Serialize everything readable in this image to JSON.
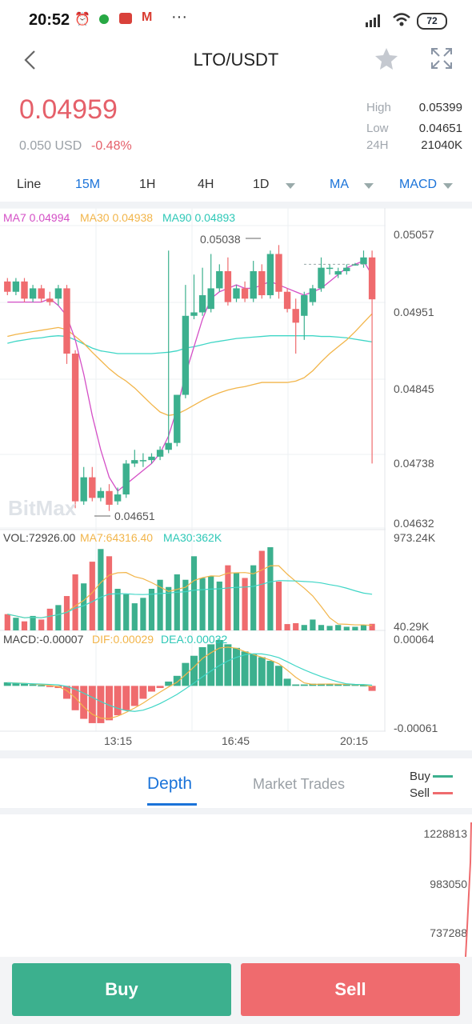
{
  "status_bar": {
    "time": "20:52",
    "battery": "72",
    "icons": [
      "alarm-icon",
      "whatsapp-business-icon",
      "mail-app-icon",
      "gmail-icon",
      "more-dots-icon",
      "signal-icon",
      "wifi-icon",
      "battery-icon"
    ]
  },
  "header": {
    "title": "LTO/USDT",
    "back_icon": "chevron-left-icon",
    "favorite_icon": "star-icon",
    "fullscreen_icon": "expand-icon"
  },
  "price": {
    "last": "0.04959",
    "usd": "0.050 USD",
    "change": "-0.48%",
    "stats": [
      {
        "label": "High",
        "value": "0.05399"
      },
      {
        "label": "Low",
        "value": "0.04651"
      },
      {
        "label": "24H",
        "value": "21040K"
      }
    ]
  },
  "toolbar": {
    "items": [
      "Line",
      "15M",
      "1H",
      "4H",
      "1D",
      "MA",
      "MACD"
    ],
    "active": "15M"
  },
  "chart_legend": {
    "ma7": "MA7 0.04994",
    "ma30": "MA30 0.04938",
    "ma90": "MA90 0.04893",
    "vol": "VOL:72926.00",
    "vol_ma7": "MA7:64316.40",
    "vol_ma30": "MA30:362K",
    "macd": "MACD:-0.00007",
    "dif": "DIF:0.00029",
    "dea": "DEA:0.00032"
  },
  "chart_axis": {
    "price_ticks": [
      "0.05057",
      "0.04951",
      "0.04845",
      "0.04738",
      "0.04632"
    ],
    "vol_ticks": [
      "973.24K",
      "40.29K"
    ],
    "macd_ticks": [
      "0.00064",
      "-0.00061"
    ],
    "time_ticks": [
      "13:15",
      "16:45",
      "20:15"
    ],
    "max_marker": "0.05038",
    "min_marker": "0.04651",
    "watermark": "BitMax"
  },
  "colors": {
    "up": "#3cb08e",
    "down": "#ef6b6e",
    "ma7": "#d44fc6",
    "ma30": "#f2b54a",
    "ma90": "#3fd6c6",
    "accent": "#1a73d9"
  },
  "chart_data": {
    "type": "candlestick",
    "y_range": [
      0.04632,
      0.05057
    ],
    "candles": [
      {
        "o": 0.04985,
        "c": 0.0497,
        "h": 0.0499,
        "l": 0.04965
      },
      {
        "o": 0.0497,
        "c": 0.04985,
        "h": 0.0499,
        "l": 0.04965
      },
      {
        "o": 0.04985,
        "c": 0.0496,
        "h": 0.0499,
        "l": 0.04955
      },
      {
        "o": 0.0496,
        "c": 0.04975,
        "h": 0.0498,
        "l": 0.04955
      },
      {
        "o": 0.04975,
        "c": 0.0496,
        "h": 0.0498,
        "l": 0.04955
      },
      {
        "o": 0.0496,
        "c": 0.04955,
        "h": 0.0497,
        "l": 0.0495
      },
      {
        "o": 0.0496,
        "c": 0.04975,
        "h": 0.0498,
        "l": 0.0495
      },
      {
        "o": 0.04975,
        "c": 0.0488,
        "h": 0.0498,
        "l": 0.04865
      },
      {
        "o": 0.0488,
        "c": 0.04665,
        "h": 0.04885,
        "l": 0.04655
      },
      {
        "o": 0.04665,
        "c": 0.047,
        "h": 0.04715,
        "l": 0.0466
      },
      {
        "o": 0.047,
        "c": 0.0467,
        "h": 0.04715,
        "l": 0.04665
      },
      {
        "o": 0.0467,
        "c": 0.0468,
        "h": 0.04685,
        "l": 0.04665
      },
      {
        "o": 0.0468,
        "c": 0.0466,
        "h": 0.0469,
        "l": 0.04651
      },
      {
        "o": 0.04665,
        "c": 0.04675,
        "h": 0.04685,
        "l": 0.0466
      },
      {
        "o": 0.04675,
        "c": 0.0472,
        "h": 0.04725,
        "l": 0.0467
      },
      {
        "o": 0.0472,
        "c": 0.04725,
        "h": 0.0474,
        "l": 0.04715
      },
      {
        "o": 0.04725,
        "c": 0.04725,
        "h": 0.04735,
        "l": 0.04715
      },
      {
        "o": 0.04725,
        "c": 0.0473,
        "h": 0.04735,
        "l": 0.0472
      },
      {
        "o": 0.0473,
        "c": 0.0474,
        "h": 0.04745,
        "l": 0.04725
      },
      {
        "o": 0.0474,
        "c": 0.0475,
        "h": 0.0503,
        "l": 0.04735
      },
      {
        "o": 0.0475,
        "c": 0.0482,
        "h": 0.0482,
        "l": 0.04745
      },
      {
        "o": 0.0482,
        "c": 0.04935,
        "h": 0.0498,
        "l": 0.04815
      },
      {
        "o": 0.04935,
        "c": 0.0494,
        "h": 0.04995,
        "l": 0.0493
      },
      {
        "o": 0.0494,
        "c": 0.04965,
        "h": 0.05005,
        "l": 0.04935
      },
      {
        "o": 0.04945,
        "c": 0.04975,
        "h": 0.05025,
        "l": 0.0494
      },
      {
        "o": 0.04975,
        "c": 0.05,
        "h": 0.0501,
        "l": 0.0497
      },
      {
        "o": 0.05,
        "c": 0.04955,
        "h": 0.0502,
        "l": 0.0495
      },
      {
        "o": 0.0496,
        "c": 0.04975,
        "h": 0.0498,
        "l": 0.04955
      },
      {
        "o": 0.04975,
        "c": 0.0496,
        "h": 0.04985,
        "l": 0.04955
      },
      {
        "o": 0.0496,
        "c": 0.05,
        "h": 0.05015,
        "l": 0.04955
      },
      {
        "o": 0.05,
        "c": 0.04965,
        "h": 0.0501,
        "l": 0.0496
      },
      {
        "o": 0.04965,
        "c": 0.05025,
        "h": 0.0503,
        "l": 0.0496
      },
      {
        "o": 0.05025,
        "c": 0.0497,
        "h": 0.05038,
        "l": 0.0496
      },
      {
        "o": 0.0497,
        "c": 0.04945,
        "h": 0.04975,
        "l": 0.0494
      },
      {
        "o": 0.04945,
        "c": 0.04925,
        "h": 0.0496,
        "l": 0.0488
      },
      {
        "o": 0.04935,
        "c": 0.04965,
        "h": 0.0497,
        "l": 0.049
      },
      {
        "o": 0.04955,
        "c": 0.04975,
        "h": 0.0498,
        "l": 0.0495
      },
      {
        "o": 0.04975,
        "c": 0.05005,
        "h": 0.0502,
        "l": 0.0497
      },
      {
        "o": 0.05005,
        "c": 0.05005,
        "h": 0.0501,
        "l": 0.04995
      },
      {
        "o": 0.04995,
        "c": 0.05,
        "h": 0.05005,
        "l": 0.0499
      },
      {
        "o": 0.05,
        "c": 0.05005,
        "h": 0.0501,
        "l": 0.04995
      },
      {
        "o": 0.0501,
        "c": 0.0501,
        "h": 0.05012,
        "l": 0.05008
      },
      {
        "o": 0.0501,
        "c": 0.0502,
        "h": 0.0503,
        "l": 0.05005
      },
      {
        "o": 0.0502,
        "c": 0.04959,
        "h": 0.0503,
        "l": 0.0472
      }
    ],
    "volume_range": [
      40290,
      973240
    ],
    "volume": [
      180000,
      140000,
      100000,
      160000,
      120000,
      240000,
      280000,
      380000,
      620000,
      520000,
      760000,
      900000,
      820000,
      460000,
      400000,
      300000,
      360000,
      460000,
      560000,
      480000,
      620000,
      560000,
      820000,
      580000,
      600000,
      540000,
      720000,
      640000,
      580000,
      720000,
      880000,
      920000,
      540000,
      70000,
      80000,
      60000,
      120000,
      60000,
      50000,
      60000,
      40000,
      40000,
      60000,
      72926
    ],
    "macd_range": [
      -0.00061,
      0.00064
    ],
    "macd": [
      5e-05,
      4e-05,
      3e-05,
      2e-05,
      1e-05,
      -1e-05,
      -3e-05,
      -0.00018,
      -0.00034,
      -0.00046,
      -0.00052,
      -0.00052,
      -0.00048,
      -0.00041,
      -0.00034,
      -0.00028,
      -0.00018,
      -8e-05,
      -3e-05,
      6e-05,
      0.00014,
      0.00032,
      0.00042,
      0.00054,
      0.00058,
      0.00064,
      0.00058,
      0.00053,
      0.00048,
      0.00045,
      0.0004,
      0.00035,
      0.00028,
      0.0001,
      2e-05,
      2e-05,
      3e-05,
      3e-05,
      3e-05,
      2e-05,
      2e-05,
      2e-05,
      1e-05,
      -7e-05
    ],
    "ma7": [
      0.04955,
      0.04955,
      0.04955,
      0.04955,
      0.04955,
      0.0496,
      0.0495,
      0.04935,
      0.049,
      0.0485,
      0.0479,
      0.0474,
      0.047,
      0.0468,
      0.0469,
      0.047,
      0.0471,
      0.0472,
      0.04735,
      0.0476,
      0.048,
      0.0485,
      0.0489,
      0.0493,
      0.0496,
      0.0497,
      0.04975,
      0.0498,
      0.04975,
      0.04975,
      0.0498,
      0.04985,
      0.0498,
      0.04975,
      0.0497,
      0.04965,
      0.0497,
      0.04975,
      0.04985,
      0.04995,
      0.05005,
      0.0501,
      0.05015,
      0.04994
    ],
    "ma30": [
      0.04905,
      0.04908,
      0.0491,
      0.04912,
      0.04914,
      0.04916,
      0.04918,
      0.04915,
      0.04905,
      0.04895,
      0.04882,
      0.0487,
      0.04858,
      0.04848,
      0.0484,
      0.0483,
      0.04818,
      0.04806,
      0.04795,
      0.0479,
      0.04792,
      0.04798,
      0.04805,
      0.04812,
      0.04818,
      0.04823,
      0.04827,
      0.0483,
      0.04832,
      0.04835,
      0.04838,
      0.04838,
      0.04838,
      0.04838,
      0.0484,
      0.04845,
      0.04855,
      0.04868,
      0.0488,
      0.0489,
      0.049,
      0.04912,
      0.04925,
      0.04938
    ],
    "ma90": [
      0.04895,
      0.04898,
      0.049,
      0.04902,
      0.04903,
      0.04905,
      0.04906,
      0.04905,
      0.049,
      0.04894,
      0.04888,
      0.04884,
      0.04882,
      0.0488,
      0.0488,
      0.0488,
      0.0488,
      0.0488,
      0.04881,
      0.04882,
      0.04884,
      0.04888,
      0.0489,
      0.04893,
      0.04896,
      0.04898,
      0.049,
      0.04902,
      0.04903,
      0.04904,
      0.04905,
      0.04906,
      0.04906,
      0.04906,
      0.04906,
      0.04906,
      0.04906,
      0.04905,
      0.04905,
      0.04904,
      0.04903,
      0.04901,
      0.04899,
      0.04897
    ]
  },
  "tabs": {
    "depth": "Depth",
    "trades": "Market Trades",
    "buy_legend": "Buy",
    "sell_legend": "Sell"
  },
  "depth": {
    "ticks": [
      "1228813",
      "983050",
      "737288"
    ]
  },
  "actions": {
    "buy": "Buy",
    "sell": "Sell"
  }
}
